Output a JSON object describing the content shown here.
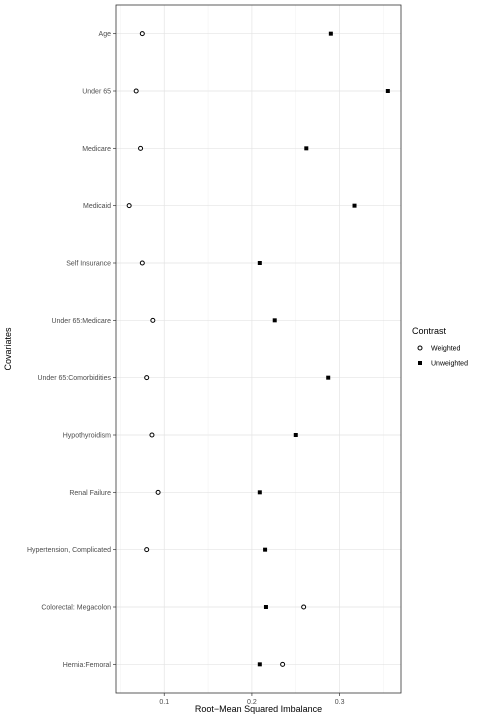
{
  "chart_data": {
    "type": "scatter",
    "xlabel": "Root−Mean Squared Imbalance",
    "ylabel": "Covariates",
    "xlim": [
      0.045,
      0.37
    ],
    "xticks": [
      0.1,
      0.2,
      0.3
    ],
    "xtick_labels": [
      "0.1",
      "0.2",
      "0.3"
    ],
    "grid": true,
    "legend_position": "right",
    "categories": [
      "Age",
      "Under 65",
      "Medicare",
      "Medicaid",
      "Self Insurance",
      "Under 65:Medicare",
      "Under 65:Comorbidities",
      "Hypothyroidism",
      "Renal Failure",
      "Hypertension, Complicated",
      "Colorectal: Megacolon",
      "Hernia:Femoral"
    ],
    "legend_title": "Contrast",
    "series": [
      {
        "name": "Weighted",
        "marker": "open-circle",
        "color": "#000000",
        "values": [
          0.075,
          0.068,
          0.073,
          0.06,
          0.075,
          0.087,
          0.08,
          0.086,
          0.093,
          0.08,
          0.259,
          0.235
        ]
      },
      {
        "name": "Unweighted",
        "marker": "filled-square",
        "color": "#000000",
        "values": [
          0.29,
          0.355,
          0.262,
          0.317,
          0.209,
          0.226,
          0.287,
          0.25,
          0.209,
          0.215,
          0.216,
          0.209
        ]
      }
    ]
  }
}
